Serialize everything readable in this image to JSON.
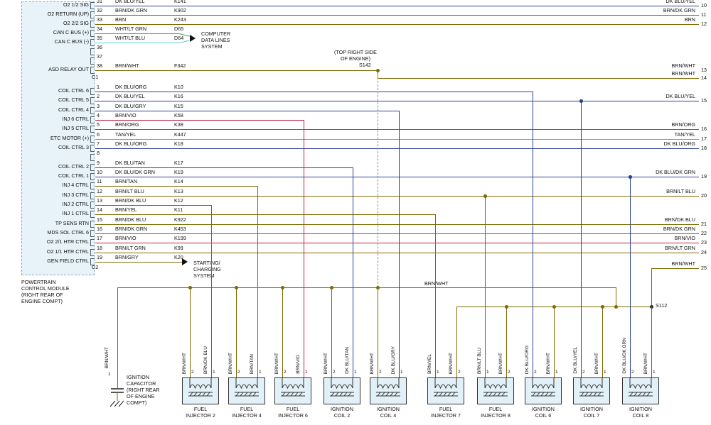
{
  "palette": {
    "navy": "#2b3f93",
    "olive": "#7e6a00",
    "crimson": "#c22047",
    "green": "#3fae49",
    "ltblue": "#63c5e6",
    "tan": "#b3905f",
    "gray": "#8a8a8a",
    "pcm_fill": "#e7f3f9",
    "component_fill": "#e2f0f7",
    "line_dark": "#111111"
  },
  "pcm": {
    "name_lines": [
      "POWERTRAIN",
      "CONTROL MODULE",
      "(RIGHT REAR OF",
      "ENGINE COMPT)"
    ],
    "connector1_label": "C1",
    "connector2_label": "C2"
  },
  "annotations": {
    "computer_data_lines": [
      "COMPUTER",
      "DATA LINES",
      "SYSTEM"
    ],
    "top_right_engine": [
      "(TOP RIGHT SIDE",
      "OF ENGINE)"
    ],
    "s142": "S142",
    "s112": "S112",
    "bus_label": "BRN/WHT",
    "starting_charging": [
      "STARTING/",
      "CHARGING",
      "SYSTEM"
    ],
    "capacitor_label": [
      "IGNITION",
      "CAPACITOR",
      "(RIGHT REAR",
      "OF ENGINE",
      "COMPT)"
    ],
    "capacitor_pin": "1",
    "capacitor_wire": "BRN/WHT"
  },
  "pins_c1": [
    {
      "pin": "31",
      "signal": "O2 1/2 SIG",
      "wire": "DK BLU/YEL",
      "circuit": "K141"
    },
    {
      "pin": "32",
      "signal": "O2 RETURN (UP)",
      "wire": "BRN/DK GRN",
      "circuit": "K902"
    },
    {
      "pin": "33",
      "signal": "O2 2/2 SIG",
      "wire": "BRN",
      "circuit": "K243"
    },
    {
      "pin": "34",
      "signal": "CAN C BUS (+)",
      "wire": "WHT/LT GRN",
      "circuit": "D65"
    },
    {
      "pin": "35",
      "signal": "CAN C BUS (-)",
      "wire": "WHT/LT BLU",
      "circuit": "D64"
    },
    {
      "pin": "36",
      "signal": "",
      "wire": "",
      "circuit": ""
    },
    {
      "pin": "37",
      "signal": "",
      "wire": "",
      "circuit": ""
    },
    {
      "pin": "38",
      "signal": "ASD RELAY OUT",
      "wire": "BRN/WHT",
      "circuit": "F342"
    }
  ],
  "pins_c2": [
    {
      "pin": "1",
      "signal": "COIL CTRL 6",
      "wire": "DK BLU/ORG",
      "circuit": "K10"
    },
    {
      "pin": "2",
      "signal": "COIL CTRL 5",
      "wire": "DK BLU/YEL",
      "circuit": "K16"
    },
    {
      "pin": "3",
      "signal": "COIL CTRL 4",
      "wire": "DK BLU/GRY",
      "circuit": "K15"
    },
    {
      "pin": "4",
      "signal": "INJ 6 CTRL",
      "wire": "BRN/VIO",
      "circuit": "K58"
    },
    {
      "pin": "5",
      "signal": "INJ 5 CTRL",
      "wire": "BRN/ORG",
      "circuit": "K38"
    },
    {
      "pin": "6",
      "signal": "ETC MOTOR (+)",
      "wire": "TAN/YEL",
      "circuit": "K447"
    },
    {
      "pin": "7",
      "signal": "COIL CTRL 3",
      "wire": "DK BLU/ORG",
      "circuit": "K18"
    },
    {
      "pin": "8",
      "signal": "",
      "wire": "",
      "circuit": ""
    },
    {
      "pin": "9",
      "signal": "COIL CTRL 2",
      "wire": "DK BLU/TAN",
      "circuit": "K17"
    },
    {
      "pin": "10",
      "signal": "COIL CTRL 1",
      "wire": "DK BLU/DK GRN",
      "circuit": "K19"
    },
    {
      "pin": "11",
      "signal": "INJ 4 CTRL",
      "wire": "BRN/TAN",
      "circuit": "K14"
    },
    {
      "pin": "12",
      "signal": "INJ 3 CTRL",
      "wire": "BRN/LT BLU",
      "circuit": "K13"
    },
    {
      "pin": "13",
      "signal": "INJ 2 CTRL",
      "wire": "BRN/DK BLU",
      "circuit": "K12"
    },
    {
      "pin": "14",
      "signal": "INJ 1 CTRL",
      "wire": "BRN/YEL",
      "circuit": "K11"
    },
    {
      "pin": "15",
      "signal": "TP SENS RTN",
      "wire": "BRN/DK BLU",
      "circuit": "K922"
    },
    {
      "pin": "16",
      "signal": "MDS SOL CTRL 6",
      "wire": "BRN/DK GRN",
      "circuit": "K453"
    },
    {
      "pin": "17",
      "signal": "O2 2/1 HTR CTRL",
      "wire": "BRN/VIO",
      "circuit": "K199"
    },
    {
      "pin": "18",
      "signal": "O2 1/1 HTR CTRL",
      "wire": "BRN/LT GRN",
      "circuit": "K99"
    },
    {
      "pin": "19",
      "signal": "GEN FIELD CTRL",
      "wire": "BRN/GRY",
      "circuit": "K20"
    }
  ],
  "right_exits": [
    {
      "num": "10",
      "label": "DK BLU/YEL"
    },
    {
      "num": "11",
      "label": "BRN/DK GRN"
    },
    {
      "num": "12",
      "label": "BRN"
    },
    {
      "num": "13",
      "label": "BRN/WHT"
    },
    {
      "num": "14",
      "label": "BRN/WHT"
    },
    {
      "num": "15",
      "label": "DK BLU/YEL"
    },
    {
      "num": "16",
      "label": "BRN/ORG"
    },
    {
      "num": "17",
      "label": "TAN/YEL"
    },
    {
      "num": "18",
      "label": "DK BLU/ORG"
    },
    {
      "num": "19",
      "label": "DK BLU/DK GRN"
    },
    {
      "num": "20",
      "label": "BRN/LT BLU"
    },
    {
      "num": "21",
      "label": "BRN/DK BLU"
    },
    {
      "num": "22",
      "label": "BRN/DK GRN"
    },
    {
      "num": "23",
      "label": "BRN/VIO"
    },
    {
      "num": "24",
      "label": "BRN/LT GRN"
    },
    {
      "num": "25",
      "label": "BRN/WHT"
    }
  ],
  "components": [
    {
      "name_lines": [
        "FUEL",
        "INJECTOR 2"
      ],
      "left_wire": "BRN/WHT",
      "right_wire": "BRN/DK BLU",
      "left_pin": "2",
      "right_pin": "1"
    },
    {
      "name_lines": [
        "FUEL",
        "INJECTOR 4"
      ],
      "left_wire": "BRN/WHT",
      "right_wire": "BRN/TAN",
      "left_pin": "2",
      "right_pin": "1"
    },
    {
      "name_lines": [
        "FUEL",
        "INJECTOR 6"
      ],
      "left_wire": "BRN/WHT",
      "right_wire": "BRN/VIO",
      "left_pin": "2",
      "right_pin": "1"
    },
    {
      "name_lines": [
        "IGNITION",
        "COIL 2"
      ],
      "left_wire": "BRN/WHT",
      "right_wire": "DK BLU/TAN",
      "left_pin": "2",
      "right_pin": "1"
    },
    {
      "name_lines": [
        "IGNITION",
        "COIL 4"
      ],
      "left_wire": "BRN/WHT",
      "right_wire": "DK BLU/GRY",
      "left_pin": "2",
      "right_pin": "1"
    },
    {
      "name_lines": [
        "FUEL",
        "INJECTOR 7"
      ],
      "left_wire": "BRN/YEL",
      "right_wire": "BRN/WHT",
      "left_pin": "1",
      "right_pin": "2"
    },
    {
      "name_lines": [
        "FUEL",
        "INJECTOR 8"
      ],
      "left_wire": "BRN/LT BLU",
      "right_wire": "BRN/WHT",
      "left_pin": "1",
      "right_pin": "2"
    },
    {
      "name_lines": [
        "IGNITION",
        "COIL 6"
      ],
      "left_wire": "DK BLU/ORG",
      "right_wire": "BRN/WHT",
      "left_pin": "2",
      "right_pin": "1"
    },
    {
      "name_lines": [
        "IGNITION",
        "COIL 7"
      ],
      "left_wire": "DK BLU/YEL",
      "right_wire": "BRN/WHT",
      "left_pin": "2",
      "right_pin": "1"
    },
    {
      "name_lines": [
        "IGNITION",
        "COIL 8"
      ],
      "left_wire": "DK BLU/DK GRN",
      "right_wire": "BRN/WHT",
      "left_pin": "2",
      "right_pin": "1"
    }
  ]
}
